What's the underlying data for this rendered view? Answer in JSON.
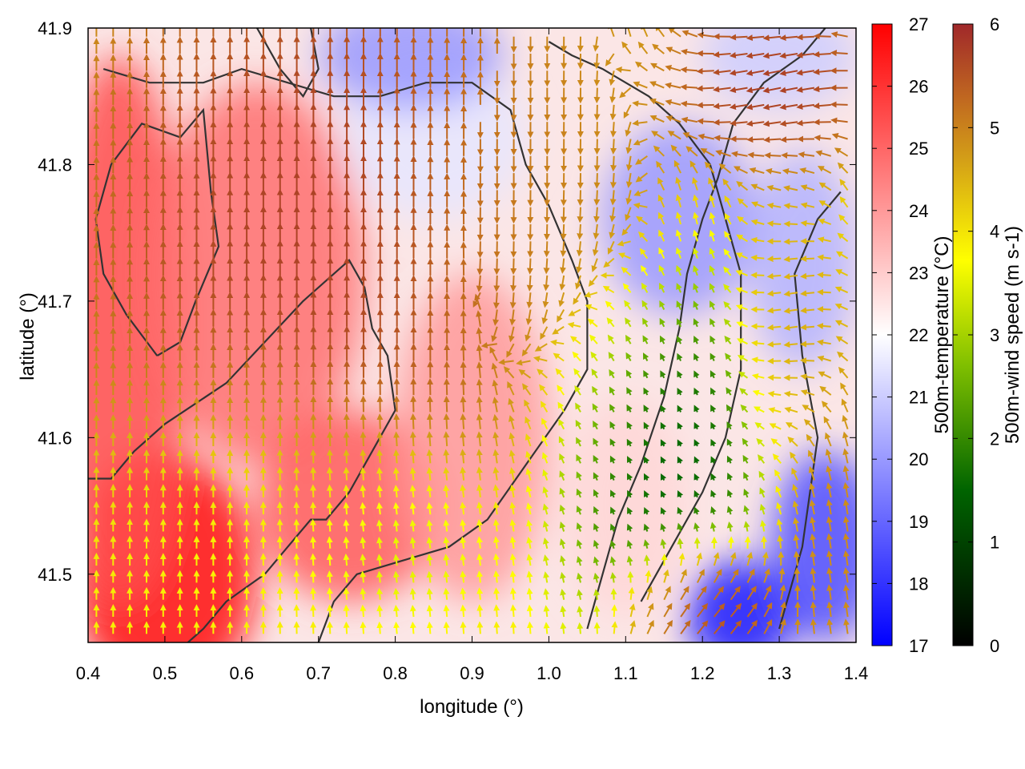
{
  "chart_data": {
    "type": "heatmap",
    "title": "",
    "xlabel": "longitude (°)",
    "ylabel": "latitude (°)",
    "xlim": [
      0.4,
      1.4
    ],
    "ylim": [
      41.45,
      41.9
    ],
    "x_ticks": [
      "0.4",
      "0.5",
      "0.6",
      "0.7",
      "0.8",
      "0.9",
      "1.0",
      "1.1",
      "1.2",
      "1.3",
      "1.4"
    ],
    "y_ticks": [
      "41.5",
      "41.6",
      "41.7",
      "41.8",
      "41.9"
    ],
    "temperature_colorbar": {
      "label": "500m-temperature (°C)",
      "range": [
        17,
        27
      ],
      "ticks": [
        "17",
        "18",
        "19",
        "20",
        "21",
        "22",
        "23",
        "24",
        "25",
        "26",
        "27"
      ],
      "colors": [
        "#0000ff",
        "#ffffff",
        "#ff0000"
      ]
    },
    "wind_colorbar": {
      "label": "500m-wind speed (m s-1)",
      "range": [
        0,
        6
      ],
      "ticks": [
        "0",
        "1",
        "2",
        "3",
        "4",
        "5",
        "6"
      ],
      "colors": [
        "#000000",
        "#006400",
        "#7fbf00",
        "#ffff00",
        "#d4a017",
        "#c06820",
        "#a0282a"
      ]
    },
    "temperature_regions": [
      {
        "lon": 0.5,
        "lat": 41.5,
        "rx": 0.12,
        "ry": 0.09,
        "value": 26.8
      },
      {
        "lon": 0.44,
        "lat": 41.68,
        "rx": 0.09,
        "ry": 0.2,
        "value": 25.5
      },
      {
        "lon": 0.62,
        "lat": 41.72,
        "rx": 0.14,
        "ry": 0.14,
        "value": 24.8
      },
      {
        "lon": 0.74,
        "lat": 41.55,
        "rx": 0.12,
        "ry": 0.07,
        "value": 25.2
      },
      {
        "lon": 0.9,
        "lat": 41.6,
        "rx": 0.1,
        "ry": 0.12,
        "value": 24
      },
      {
        "lon": 0.85,
        "lat": 41.82,
        "rx": 0.12,
        "ry": 0.06,
        "value": 21.5
      },
      {
        "lon": 0.82,
        "lat": 41.88,
        "rx": 0.12,
        "ry": 0.04,
        "value": 20
      },
      {
        "lon": 1.1,
        "lat": 41.55,
        "rx": 0.08,
        "ry": 0.08,
        "value": 22.8
      },
      {
        "lon": 1.17,
        "lat": 41.76,
        "rx": 0.1,
        "ry": 0.07,
        "value": 20
      },
      {
        "lon": 1.25,
        "lat": 41.47,
        "rx": 0.07,
        "ry": 0.04,
        "value": 17.4
      },
      {
        "lon": 1.36,
        "lat": 41.52,
        "rx": 0.07,
        "ry": 0.07,
        "value": 18.5
      },
      {
        "lon": 1.33,
        "lat": 41.73,
        "rx": 0.07,
        "ry": 0.08,
        "value": 20.5
      },
      {
        "lon": 1.3,
        "lat": 41.88,
        "rx": 0.1,
        "ry": 0.04,
        "value": 21
      }
    ],
    "wind_regions": [
      {
        "lon": 0.72,
        "lat": 41.75,
        "rx": 0.26,
        "ry": 0.18,
        "speed": 6,
        "dir": 90
      },
      {
        "lon": 0.97,
        "lat": 41.76,
        "rx": 0.14,
        "ry": 0.14,
        "speed": 4.4,
        "dir": 270
      },
      {
        "lon": 0.6,
        "lat": 41.54,
        "rx": 0.14,
        "ry": 0.08,
        "speed": 2.8,
        "dir": 90
      },
      {
        "lon": 0.8,
        "lat": 41.53,
        "rx": 0.12,
        "ry": 0.06,
        "speed": 2.2,
        "dir": 100
      },
      {
        "lon": 1.13,
        "lat": 41.6,
        "rx": 0.12,
        "ry": 0.1,
        "speed": 0.5,
        "dir": 120
      },
      {
        "lon": 1.2,
        "lat": 41.47,
        "rx": 0.08,
        "ry": 0.04,
        "speed": 6,
        "dir": 40
      },
      {
        "lon": 1.3,
        "lat": 41.86,
        "rx": 0.1,
        "ry": 0.05,
        "speed": 6,
        "dir": 200
      },
      {
        "lon": 1.38,
        "lat": 41.52,
        "rx": 0.06,
        "ry": 0.1,
        "speed": 4.6,
        "dir": 100
      },
      {
        "lon": 1.32,
        "lat": 41.68,
        "rx": 0.06,
        "ry": 0.08,
        "speed": 4,
        "dir": 200
      }
    ],
    "contours": [
      [
        [
          0.4,
          41.57
        ],
        [
          0.43,
          41.57
        ],
        [
          0.46,
          41.59
        ],
        [
          0.5,
          41.61
        ],
        [
          0.58,
          41.64
        ],
        [
          0.63,
          41.67
        ],
        [
          0.68,
          41.7
        ],
        [
          0.72,
          41.72
        ],
        [
          0.74,
          41.73
        ],
        [
          0.76,
          41.71
        ],
        [
          0.77,
          41.68
        ],
        [
          0.79,
          41.66
        ],
        [
          0.8,
          41.62
        ],
        [
          0.78,
          41.6
        ],
        [
          0.74,
          41.56
        ],
        [
          0.71,
          41.54
        ],
        [
          0.69,
          41.54
        ],
        [
          0.66,
          41.52
        ],
        [
          0.63,
          41.5
        ],
        [
          0.58,
          41.48
        ],
        [
          0.55,
          41.46
        ],
        [
          0.53,
          41.45
        ]
      ],
      [
        [
          0.49,
          41.66
        ],
        [
          0.45,
          41.69
        ],
        [
          0.42,
          41.72
        ],
        [
          0.41,
          41.76
        ],
        [
          0.43,
          41.8
        ],
        [
          0.47,
          41.83
        ],
        [
          0.52,
          41.82
        ],
        [
          0.55,
          41.84
        ],
        [
          0.56,
          41.78
        ],
        [
          0.57,
          41.74
        ],
        [
          0.54,
          41.7
        ],
        [
          0.52,
          41.67
        ],
        [
          0.49,
          41.66
        ]
      ],
      [
        [
          0.42,
          41.87
        ],
        [
          0.48,
          41.86
        ],
        [
          0.55,
          41.86
        ],
        [
          0.6,
          41.87
        ],
        [
          0.66,
          41.86
        ],
        [
          0.72,
          41.85
        ],
        [
          0.78,
          41.85
        ],
        [
          0.84,
          41.86
        ],
        [
          0.9,
          41.86
        ],
        [
          0.95,
          41.84
        ],
        [
          0.97,
          41.8
        ],
        [
          1.0,
          41.77
        ],
        [
          1.03,
          41.73
        ],
        [
          1.05,
          41.7
        ],
        [
          1.05,
          41.65
        ],
        [
          1.02,
          41.62
        ],
        [
          0.97,
          41.58
        ],
        [
          0.92,
          41.54
        ],
        [
          0.87,
          41.52
        ],
        [
          0.81,
          41.51
        ],
        [
          0.75,
          41.5
        ],
        [
          0.72,
          41.48
        ],
        [
          0.7,
          41.45
        ]
      ],
      [
        [
          1.12,
          41.48
        ],
        [
          1.16,
          41.52
        ],
        [
          1.2,
          41.56
        ],
        [
          1.23,
          41.6
        ],
        [
          1.25,
          41.65
        ],
        [
          1.25,
          41.72
        ],
        [
          1.23,
          41.76
        ],
        [
          1.21,
          41.8
        ],
        [
          1.17,
          41.83
        ],
        [
          1.13,
          41.85
        ],
        [
          1.07,
          41.87
        ],
        [
          1.03,
          41.88
        ],
        [
          1.0,
          41.89
        ]
      ],
      [
        [
          1.05,
          41.46
        ],
        [
          1.07,
          41.5
        ],
        [
          1.09,
          41.54
        ],
        [
          1.12,
          41.58
        ],
        [
          1.15,
          41.63
        ],
        [
          1.17,
          41.68
        ],
        [
          1.18,
          41.72
        ],
        [
          1.2,
          41.76
        ],
        [
          1.22,
          41.79
        ],
        [
          1.24,
          41.83
        ],
        [
          1.28,
          41.86
        ],
        [
          1.33,
          41.88
        ],
        [
          1.36,
          41.9
        ]
      ],
      [
        [
          1.3,
          41.46
        ],
        [
          1.33,
          41.52
        ],
        [
          1.35,
          41.6
        ],
        [
          1.33,
          41.66
        ],
        [
          1.32,
          41.72
        ],
        [
          1.35,
          41.76
        ],
        [
          1.38,
          41.78
        ]
      ],
      [
        [
          0.62,
          41.9
        ],
        [
          0.65,
          41.87
        ],
        [
          0.68,
          41.85
        ],
        [
          0.7,
          41.87
        ],
        [
          0.69,
          41.9
        ]
      ]
    ]
  }
}
